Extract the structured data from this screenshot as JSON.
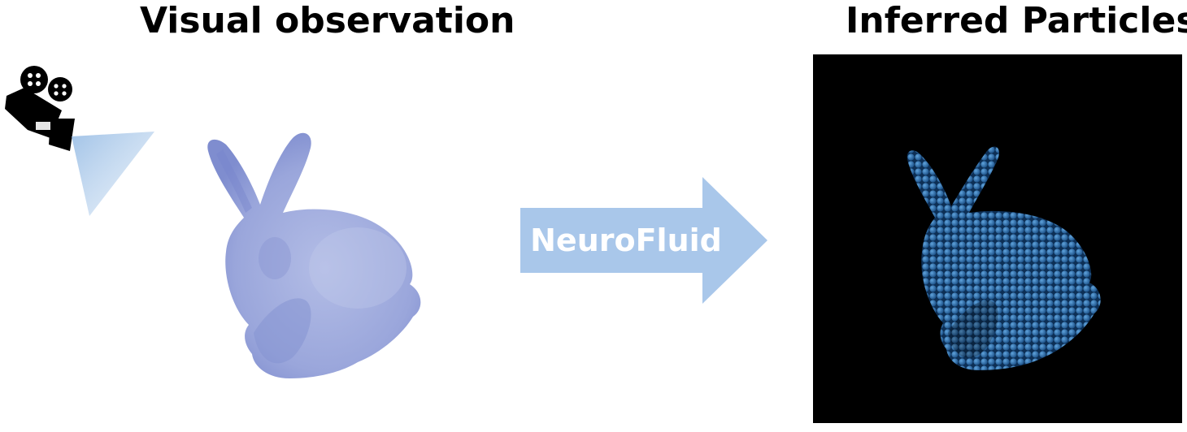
{
  "titles": {
    "left": "Visual observation",
    "right": "Inferred Particles"
  },
  "arrow": {
    "label": "NeuroFluid",
    "color": "#a9c7ea"
  },
  "icons": {
    "camera": "movie-camera-icon"
  },
  "colors": {
    "observed_bunny": "#9aa6db",
    "particles": "#2c6fae",
    "panel_background": "#000000"
  }
}
